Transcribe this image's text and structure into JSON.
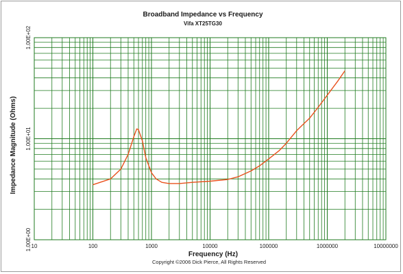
{
  "chart_data": {
    "type": "line",
    "title": "Broadband Impedance vs Frequency",
    "subtitle": "Vifa XT25TG30",
    "xlabel": "Frequency (Hz)",
    "ylabel": "Impedance Magnitude (Ohms)",
    "x_scale": "log",
    "y_scale": "log",
    "xlim": [
      10,
      10000000
    ],
    "ylim": [
      1,
      100
    ],
    "x_tick_labels": [
      "10",
      "100",
      "1000",
      "10000",
      "100000",
      "1000000",
      "10000000"
    ],
    "y_tick_labels": [
      "1.00E+00",
      "1.00E+01",
      "1.00E+02"
    ],
    "grid": true,
    "legend": "none",
    "colors": {
      "line": "#e8501c",
      "grid": "#1e7a1e",
      "border": "#9a9a9a"
    },
    "series": [
      {
        "x": [
          100,
          200,
          300,
          400,
          500,
          560,
          600,
          700,
          800,
          1000,
          1200,
          1500,
          2000,
          3000,
          5000,
          10000,
          20000,
          30000,
          50000,
          70000,
          100000,
          150000,
          200000,
          300000,
          500000,
          700000,
          1000000,
          1500000,
          2000000
        ],
        "y": [
          3.5,
          4.0,
          5.0,
          7.0,
          10.5,
          12.5,
          12.3,
          9.5,
          6.5,
          4.6,
          4.0,
          3.7,
          3.6,
          3.6,
          3.7,
          3.8,
          3.95,
          4.2,
          4.8,
          5.4,
          6.3,
          7.6,
          9.0,
          12.0,
          16.0,
          20.5,
          27.0,
          37.0,
          47.0
        ]
      }
    ]
  },
  "copyright": "Copyright ©2006 Dick Pierce, All Rights Reserved"
}
